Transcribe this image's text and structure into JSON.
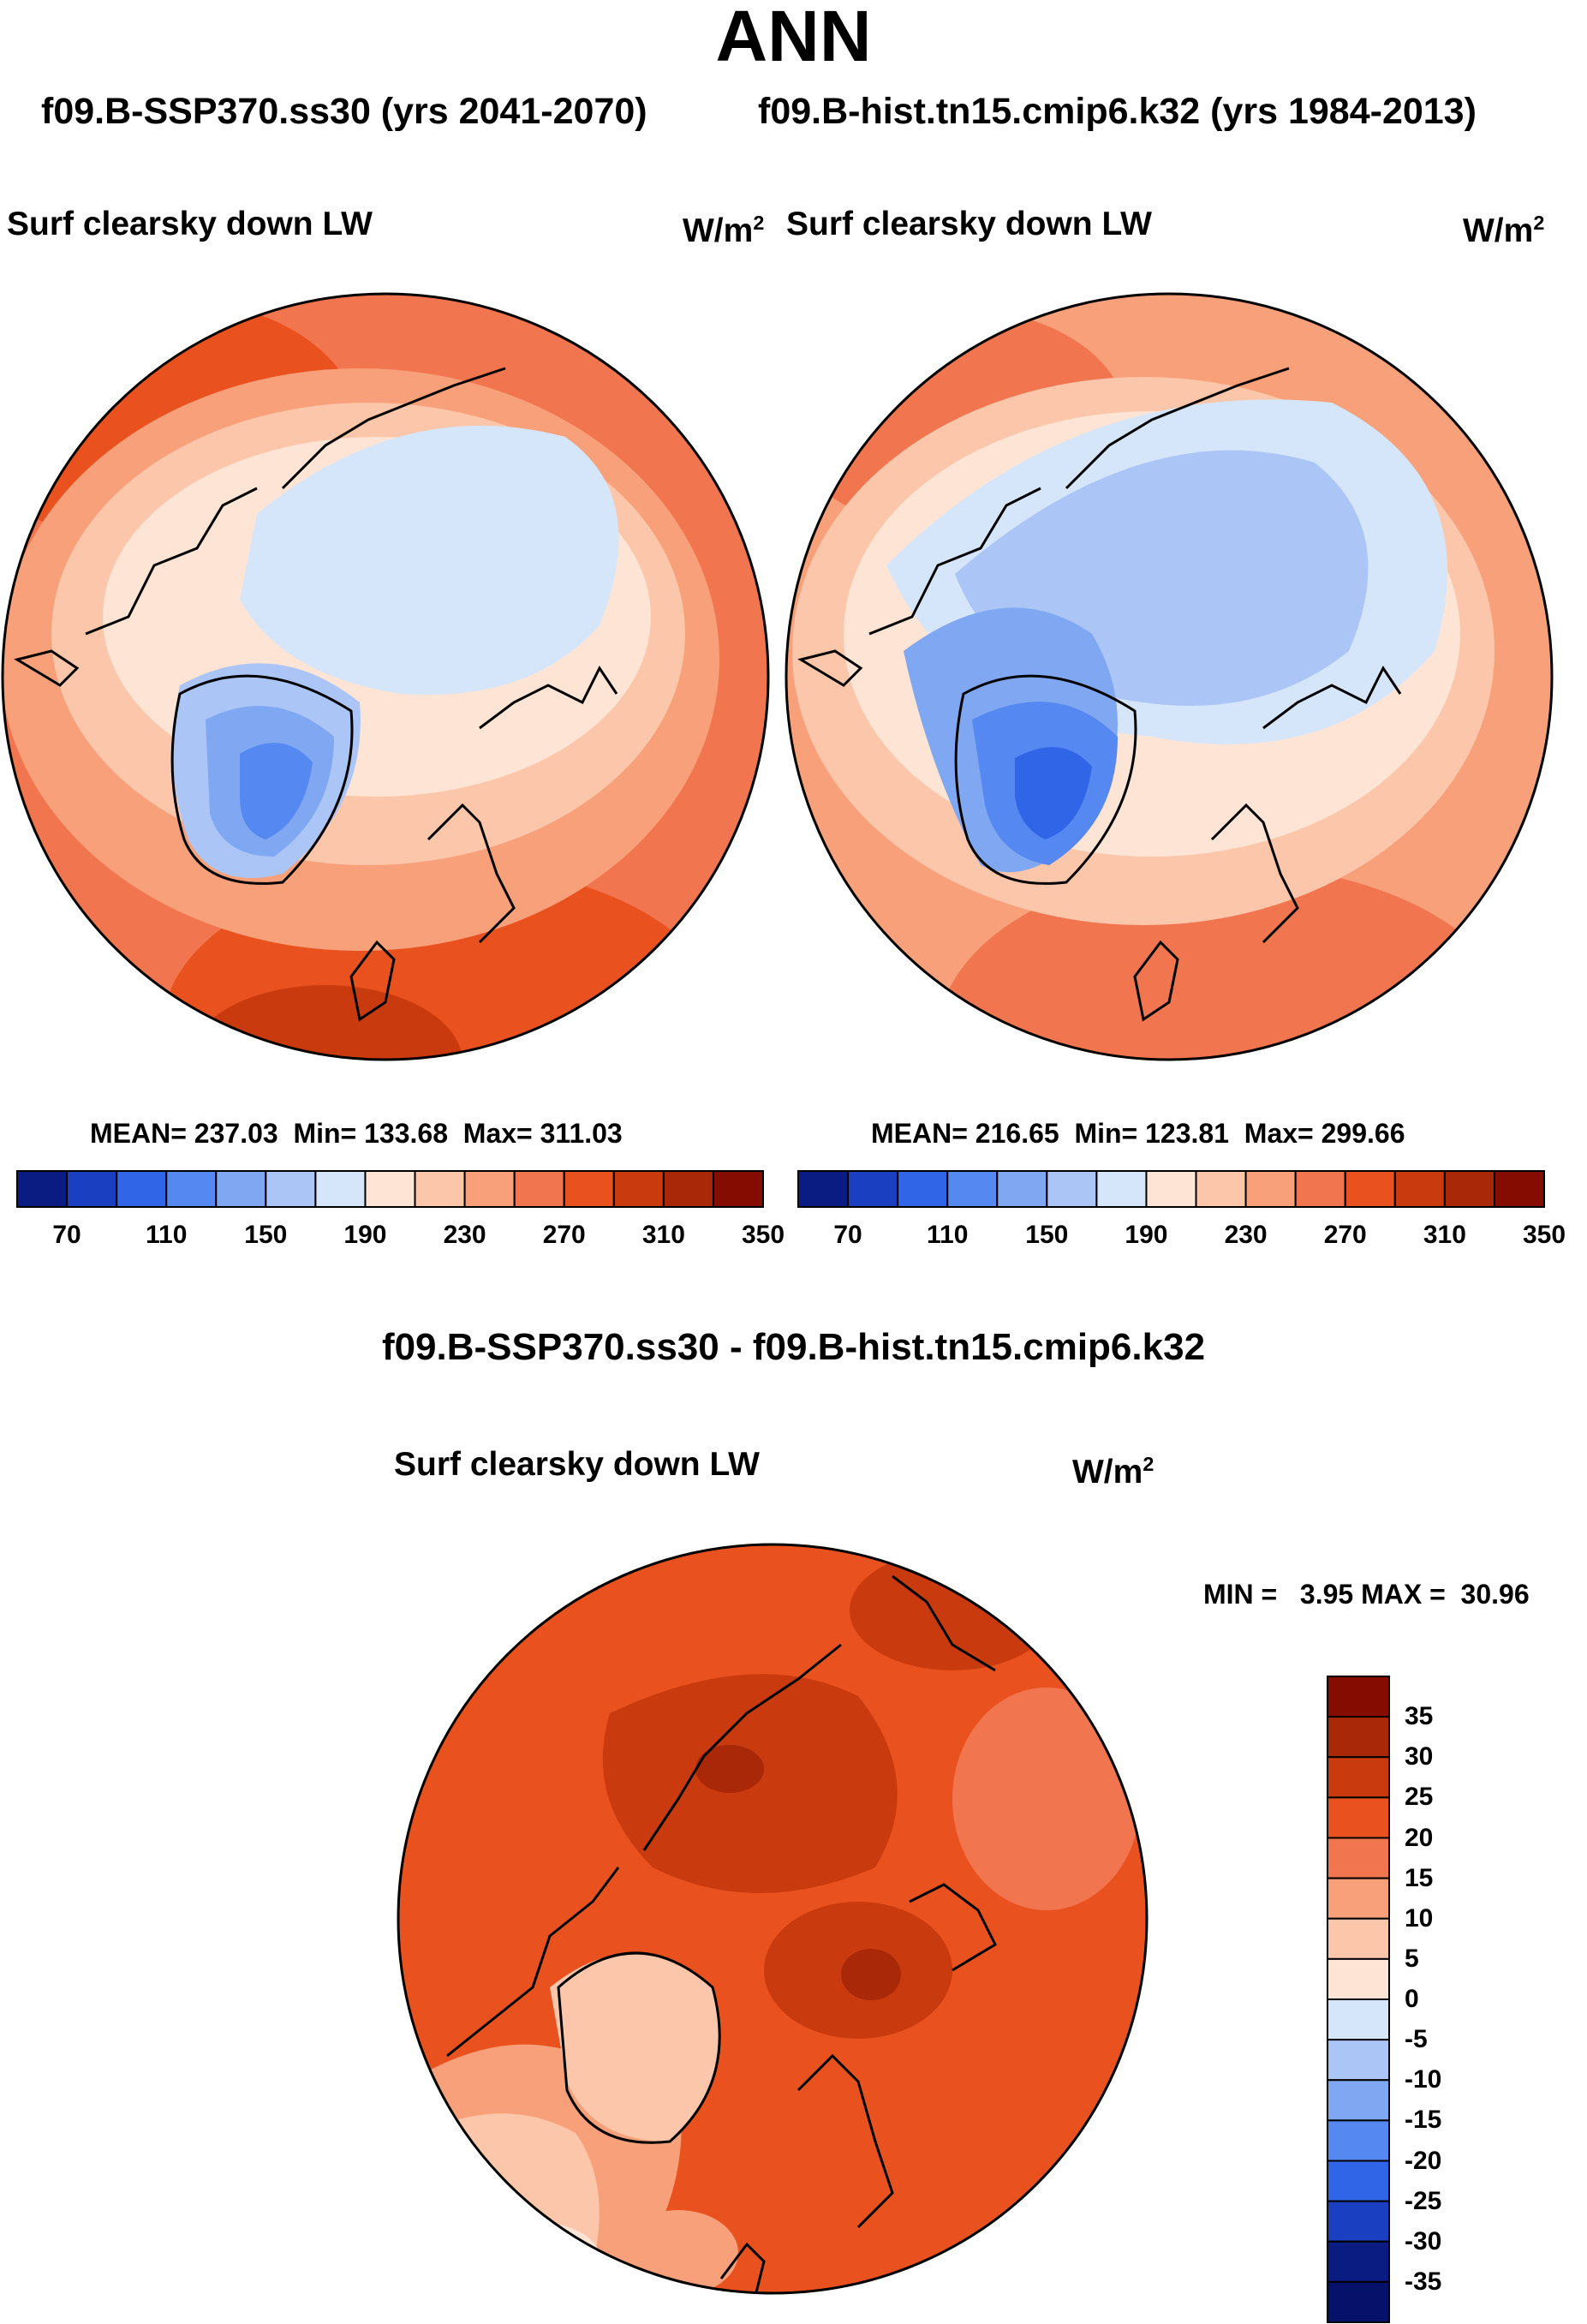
{
  "header": {
    "title": "ANN",
    "subtitle_left": "f09.B-SSP370.ss30 (yrs 2041-2070)",
    "subtitle_right": "f09.B-hist.tn15.cmip6.k32 (yrs 1984-2013)"
  },
  "colors": {
    "cold_scale": [
      "#0a1c82",
      "#1a3fc0",
      "#3165e8",
      "#5588f0",
      "#80a8f2",
      "#abc6f6",
      "#d6e6fa"
    ],
    "warm_scale": [
      "#fde4d4",
      "#fbc6aa",
      "#f7a07a",
      "#f1754f",
      "#e9521f",
      "#c93a0e",
      "#a92808",
      "#840c00"
    ],
    "coastline": "#000000"
  },
  "chart_data": [
    {
      "type": "heatmap",
      "projection": "north polar stereographic",
      "variable": "Surf clearsky down LW",
      "units": "W/m",
      "units_exp": "2",
      "period": "f09.B-SSP370.ss30 (yrs 2041-2070)",
      "stats": {
        "mean": 237.03,
        "min": 133.68,
        "max": 311.03
      },
      "stats_text": {
        "mean": "MEAN= 237.03",
        "min": "Min= 133.68",
        "max": "Max= 311.03"
      },
      "levels": [
        70,
        90,
        110,
        130,
        150,
        170,
        190,
        210,
        230,
        250,
        270,
        290,
        310,
        330,
        350
      ],
      "tick_labels": [
        "70",
        "110",
        "150",
        "190",
        "230",
        "270",
        "310",
        "350"
      ]
    },
    {
      "type": "heatmap",
      "projection": "north polar stereographic",
      "variable": "Surf clearsky down LW",
      "units": "W/m",
      "units_exp": "2",
      "period": "f09.B-hist.tn15.cmip6.k32 (yrs 1984-2013)",
      "stats": {
        "mean": 216.65,
        "min": 123.81,
        "max": 299.66
      },
      "stats_text": {
        "mean": "MEAN= 216.65",
        "min": "Min= 123.81",
        "max": "Max= 299.66"
      },
      "levels": [
        70,
        90,
        110,
        130,
        150,
        170,
        190,
        210,
        230,
        250,
        270,
        290,
        310,
        330,
        350
      ],
      "tick_labels": [
        "70",
        "110",
        "150",
        "190",
        "230",
        "270",
        "310",
        "350"
      ]
    },
    {
      "type": "heatmap",
      "projection": "north polar stereographic",
      "title": "f09.B-SSP370.ss30 - f09.B-hist.tn15.cmip6.k32",
      "variable": "Surf clearsky down LW",
      "units": "W/m",
      "units_exp": "2",
      "stats": {
        "min": 3.95,
        "max": 30.96
      },
      "stats_text": "MIN =   3.95 MAX =  30.96",
      "levels": [
        35,
        30,
        25,
        20,
        15,
        10,
        5,
        0,
        -5,
        -10,
        -15,
        -20,
        -25,
        -30,
        -35
      ],
      "tick_labels": [
        "35",
        "30",
        "25",
        "20",
        "15",
        "10",
        "5",
        "0",
        "-5",
        "-10",
        "-15",
        "-20",
        "-25",
        "-30",
        "-35"
      ]
    }
  ]
}
